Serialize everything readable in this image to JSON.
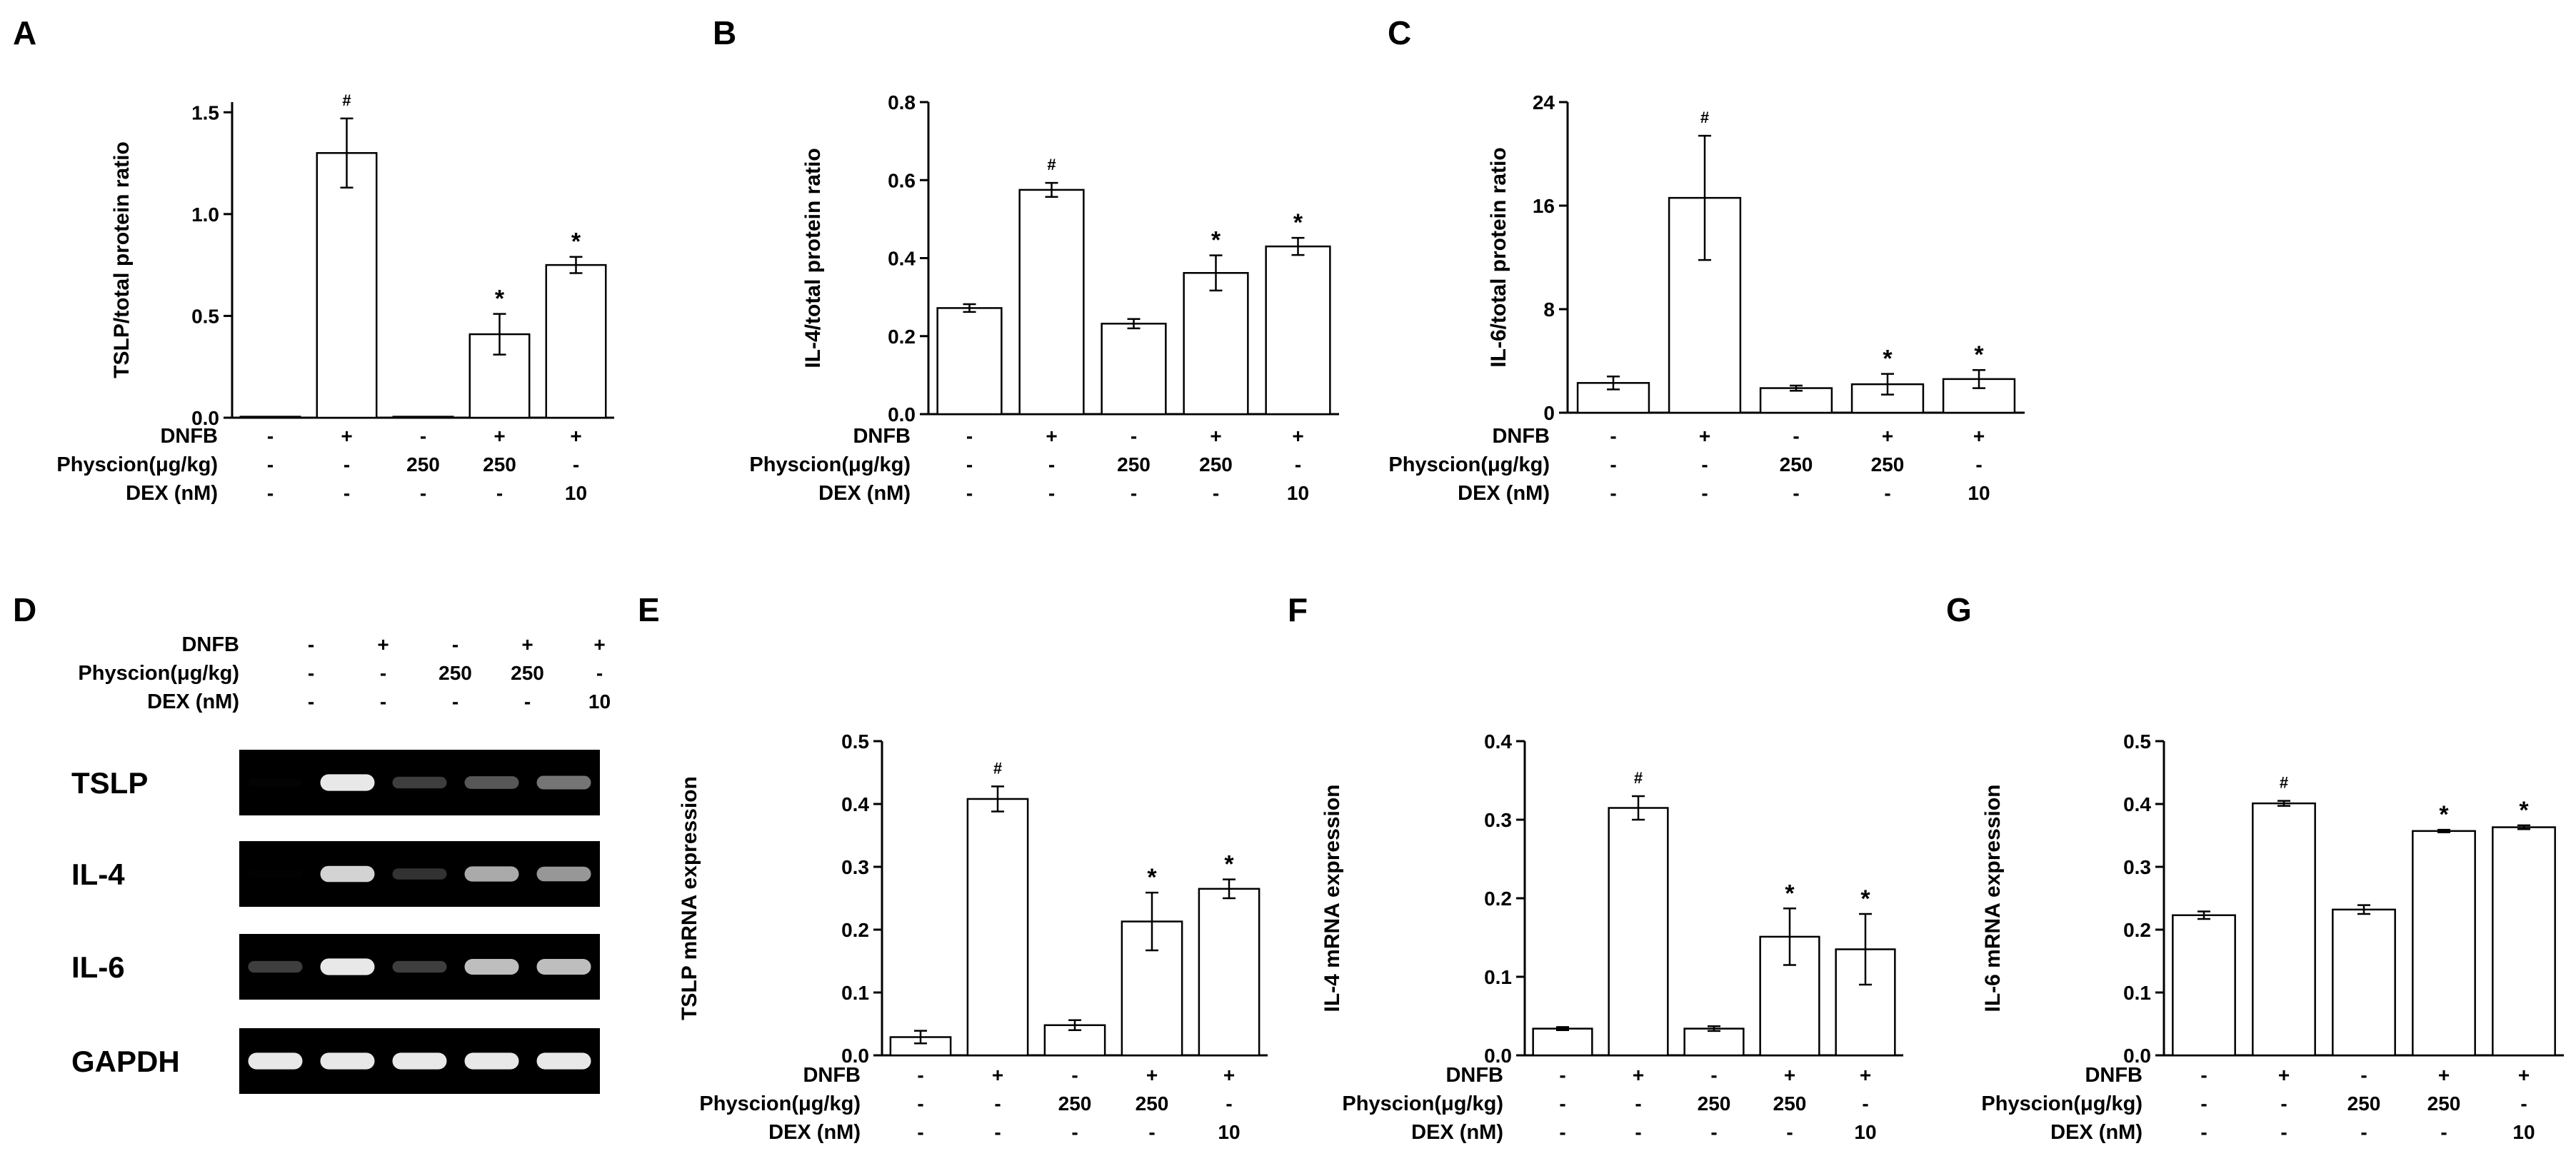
{
  "figure": {
    "conditions": {
      "labels": [
        "DNFB",
        "Physcion(μg/kg)",
        "DEX (nM)"
      ],
      "values": [
        [
          "-",
          "+",
          "-",
          "+",
          "+"
        ],
        [
          "-",
          "-",
          "250",
          "250",
          "-"
        ],
        [
          "-",
          "-",
          "-",
          "-",
          "10"
        ]
      ]
    },
    "gel": {
      "letter": "D",
      "bands": [
        "TSLP",
        "IL-4",
        "IL-6",
        "GAPDH"
      ],
      "intensity": [
        [
          0.05,
          0.95,
          0.45,
          0.55,
          0.65
        ],
        [
          0.03,
          0.9,
          0.4,
          0.8,
          0.75
        ],
        [
          0.45,
          0.95,
          0.45,
          0.85,
          0.85
        ],
        [
          0.95,
          0.95,
          0.95,
          0.95,
          0.95
        ]
      ]
    }
  },
  "chart_data": [
    {
      "panel": "A",
      "type": "bar",
      "ylabel": "TSLP/total protein ratio",
      "yticks": [
        "0.0",
        "0.5",
        "1.0",
        "1.5"
      ],
      "ylim": [
        0,
        1.55
      ],
      "values": [
        0.005,
        1.3,
        0.005,
        0.41,
        0.75
      ],
      "errors": [
        0,
        0.17,
        0,
        0.1,
        0.04
      ],
      "marks": [
        "",
        "#",
        "",
        "*",
        "*"
      ]
    },
    {
      "panel": "B",
      "type": "bar",
      "ylabel": "IL-4/total protein ratio",
      "yticks": [
        "0.0",
        "0.2",
        "0.4",
        "0.6",
        "0.8"
      ],
      "ylim": [
        0,
        0.8
      ],
      "values": [
        0.272,
        0.575,
        0.232,
        0.362,
        0.43
      ],
      "errors": [
        0.01,
        0.018,
        0.012,
        0.045,
        0.022
      ],
      "marks": [
        "",
        "#",
        "",
        "*",
        "*"
      ]
    },
    {
      "panel": "C",
      "type": "bar",
      "ylabel": "IL-6/total protein ratio",
      "yticks": [
        "0",
        "8",
        "16",
        "24"
      ],
      "ylim": [
        0,
        24
      ],
      "values": [
        2.3,
        16.6,
        1.9,
        2.2,
        2.6
      ],
      "errors": [
        0.5,
        4.8,
        0.2,
        0.8,
        0.7
      ],
      "marks": [
        "",
        "#",
        "",
        "*",
        "*"
      ]
    },
    {
      "panel": "E",
      "type": "bar",
      "ylabel": "TSLP mRNA expression",
      "yticks": [
        "0.0",
        "0.1",
        "0.2",
        "0.3",
        "0.4",
        "0.5"
      ],
      "ylim": [
        0,
        0.5
      ],
      "values": [
        0.029,
        0.408,
        0.048,
        0.213,
        0.265
      ],
      "errors": [
        0.01,
        0.02,
        0.008,
        0.046,
        0.015
      ],
      "marks": [
        "",
        "#",
        "",
        "*",
        "*"
      ]
    },
    {
      "panel": "F",
      "type": "bar",
      "ylabel": "IL-4 mRNA expression",
      "yticks": [
        "0.0",
        "0.1",
        "0.2",
        "0.3",
        "0.4"
      ],
      "ylim": [
        0,
        0.4
      ],
      "values": [
        0.034,
        0.315,
        0.034,
        0.151,
        0.135
      ],
      "errors": [
        0.002,
        0.015,
        0.003,
        0.036,
        0.045
      ],
      "marks": [
        "",
        "#",
        "",
        "*",
        "*"
      ]
    },
    {
      "panel": "G",
      "type": "bar",
      "ylabel": "IL-6 mRNA expression",
      "yticks": [
        "0.0",
        "0.1",
        "0.2",
        "0.3",
        "0.4",
        "0.5"
      ],
      "ylim": [
        0,
        0.5
      ],
      "values": [
        0.223,
        0.401,
        0.232,
        0.357,
        0.363
      ],
      "errors": [
        0.006,
        0.004,
        0.007,
        0.002,
        0.003
      ],
      "marks": [
        "",
        "#",
        "",
        "*",
        "*"
      ]
    }
  ]
}
